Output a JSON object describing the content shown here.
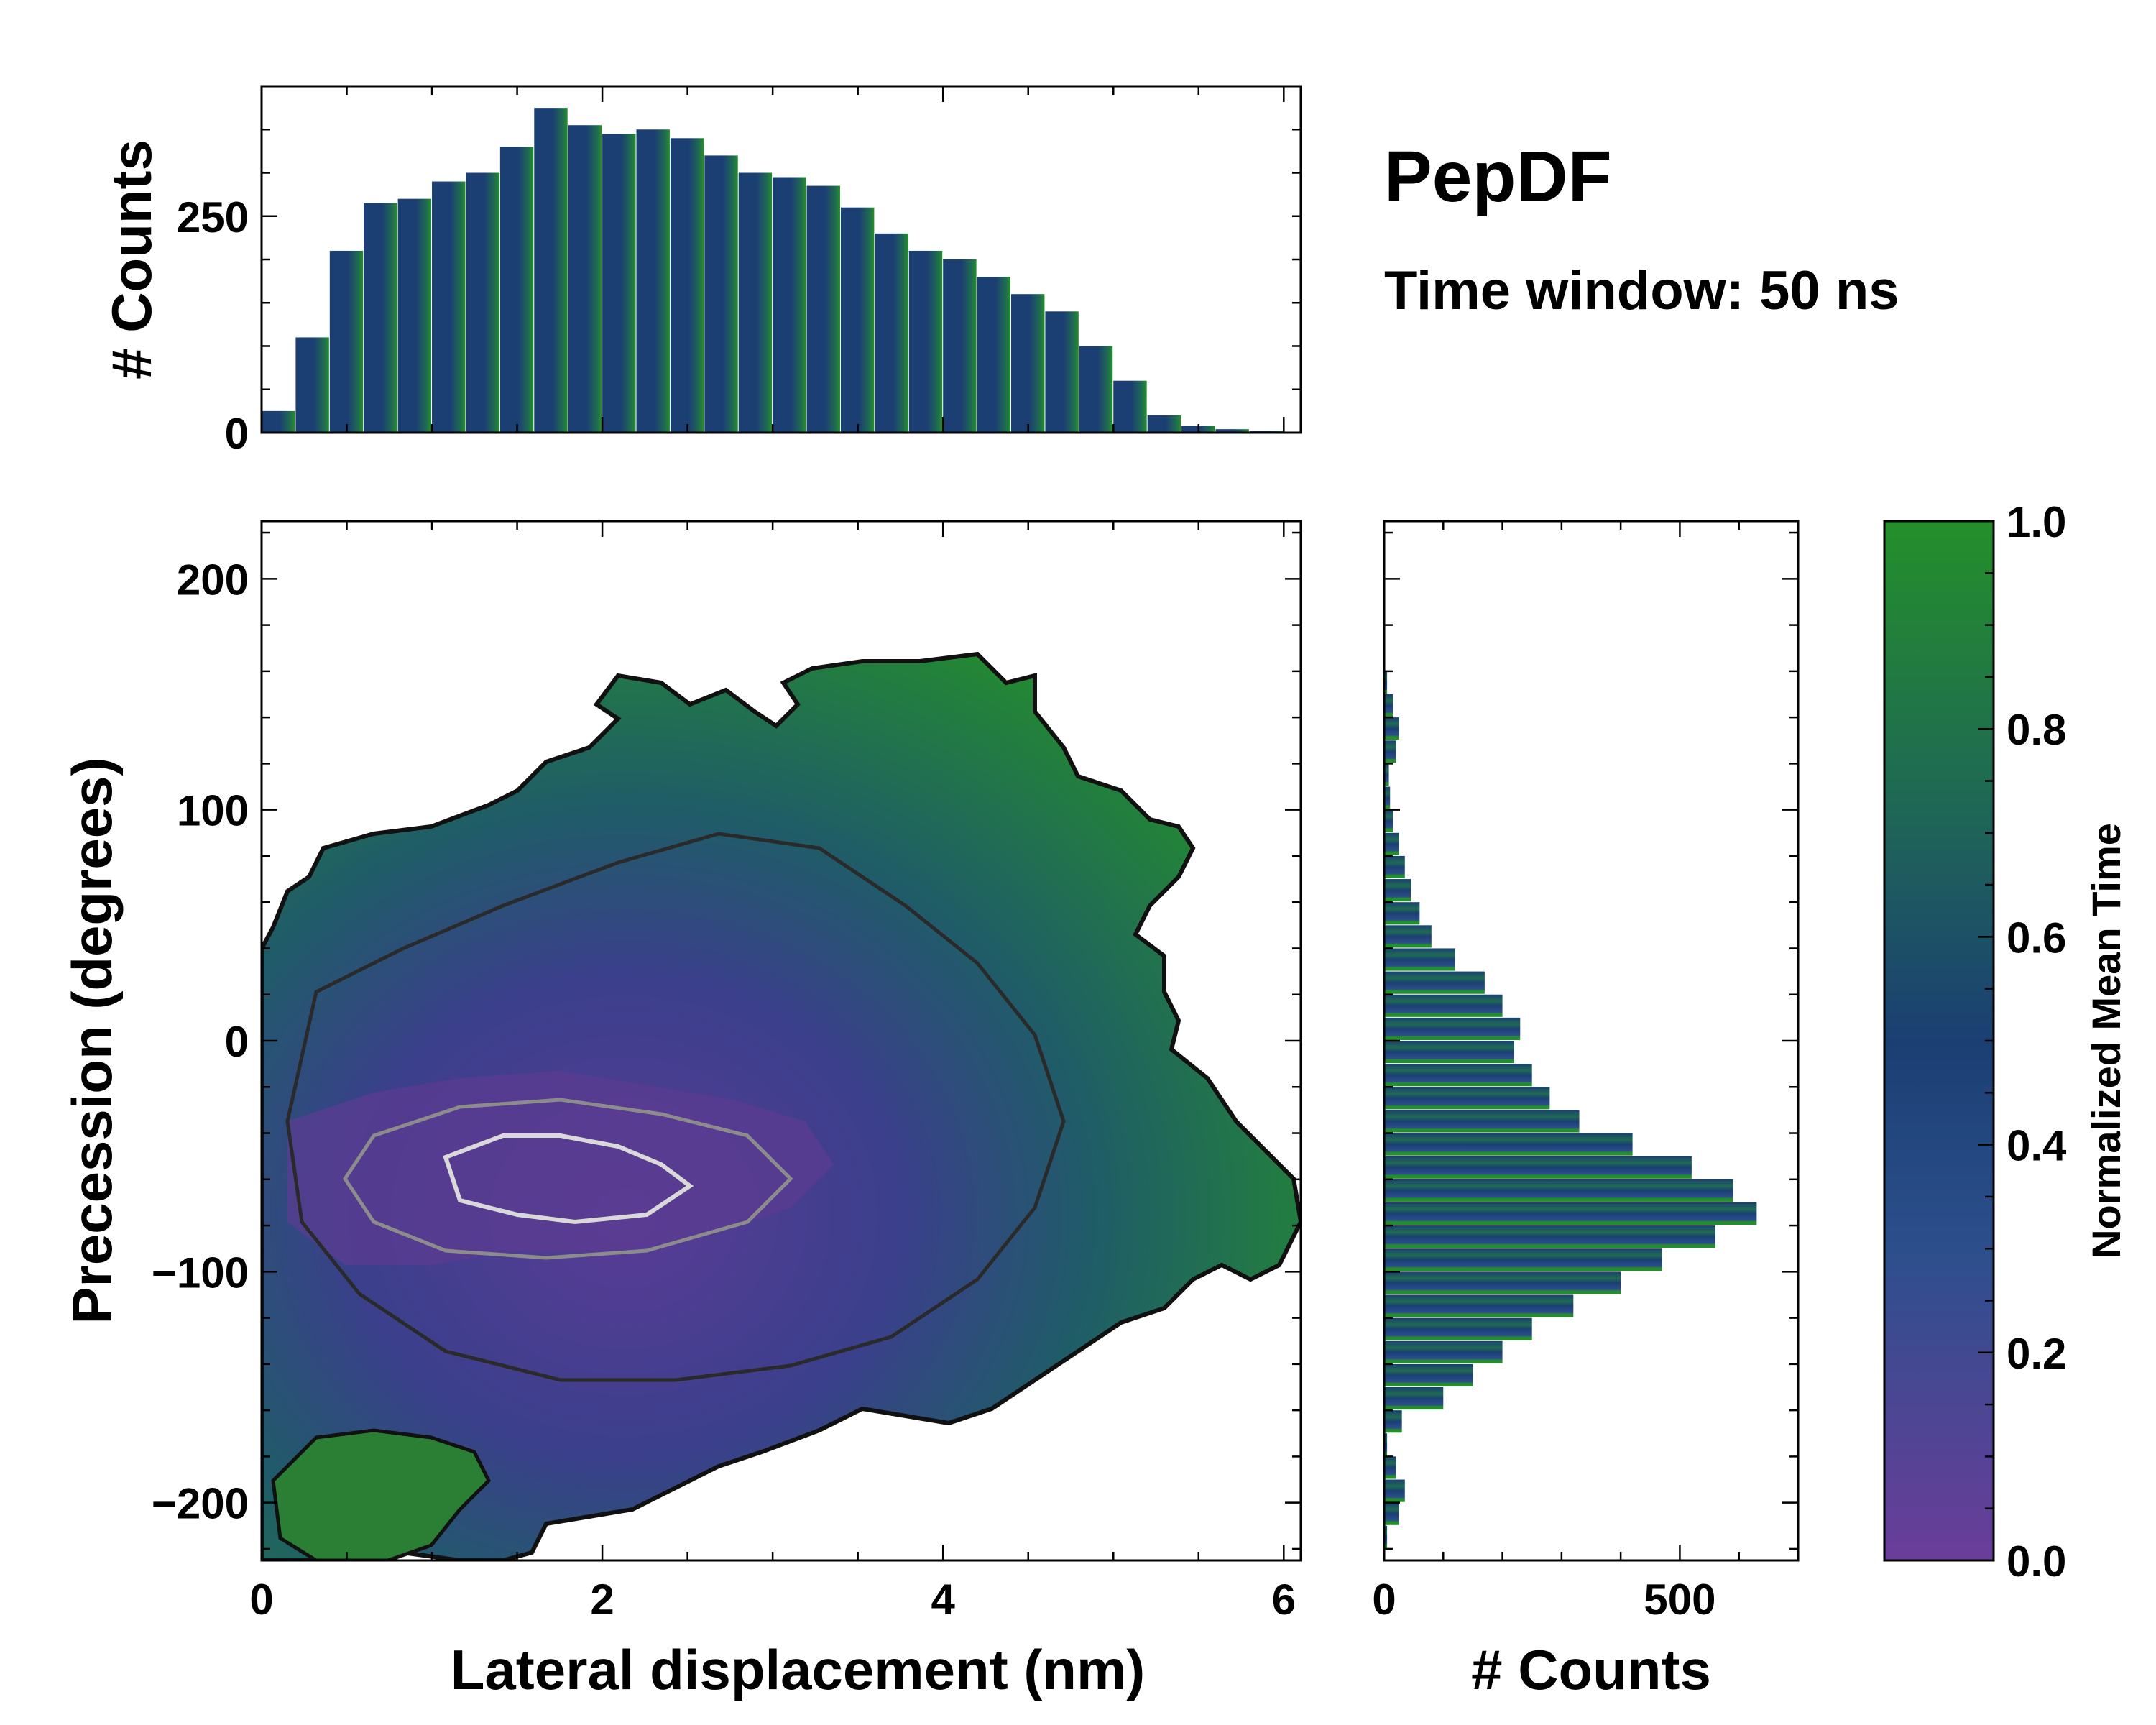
{
  "chart_data": {
    "type": "joint-histogram",
    "title": "PepDF",
    "subtitle": "Time window: 50 ns",
    "main": {
      "type": "heatmap",
      "xlabel": "Lateral displacement (nm)",
      "ylabel": "Precession (degrees)",
      "xlim": [
        0,
        6.1
      ],
      "ylim": [
        -225,
        225
      ],
      "xticks": [
        0,
        2,
        4,
        6
      ],
      "xtick_labels": [
        "0",
        "2",
        "4",
        "6"
      ],
      "yticks": [
        -200,
        -100,
        0,
        100,
        200
      ],
      "ytick_labels": [
        "−200",
        "−100",
        "0",
        "100",
        "200"
      ],
      "density_peak": {
        "x": 2.3,
        "y": -60
      },
      "contours": true
    },
    "top_histogram": {
      "type": "bar",
      "ylabel": "# Counts",
      "ylim": [
        0,
        400
      ],
      "yticks": [
        0,
        250
      ],
      "ytick_labels": [
        "0",
        "250"
      ],
      "bin_centers": [
        0.1,
        0.3,
        0.5,
        0.7,
        0.9,
        1.1,
        1.3,
        1.5,
        1.7,
        1.9,
        2.1,
        2.3,
        2.5,
        2.7,
        2.9,
        3.1,
        3.3,
        3.5,
        3.7,
        3.9,
        4.1,
        4.3,
        4.5,
        4.7,
        4.9,
        5.1,
        5.3,
        5.5,
        5.7,
        5.9
      ],
      "values": [
        25,
        110,
        210,
        265,
        270,
        290,
        300,
        330,
        375,
        355,
        345,
        350,
        340,
        320,
        300,
        295,
        285,
        260,
        230,
        210,
        200,
        180,
        160,
        140,
        100,
        60,
        20,
        8,
        4,
        2
      ]
    },
    "right_histogram": {
      "type": "barh",
      "xlabel": "# Counts",
      "xlim": [
        0,
        700
      ],
      "xticks": [
        0,
        500
      ],
      "xtick_labels": [
        "0",
        "500"
      ],
      "bin_centers": [
        -215,
        -205,
        -195,
        -185,
        -175,
        -165,
        -155,
        -145,
        -135,
        -125,
        -115,
        -105,
        -95,
        -85,
        -75,
        -65,
        -55,
        -45,
        -35,
        -25,
        -15,
        -5,
        5,
        15,
        25,
        35,
        45,
        55,
        65,
        75,
        85,
        95,
        105,
        115,
        125,
        135,
        145,
        155
      ],
      "values": [
        5,
        25,
        35,
        20,
        5,
        30,
        100,
        150,
        200,
        250,
        320,
        400,
        470,
        560,
        630,
        590,
        520,
        420,
        330,
        280,
        250,
        220,
        230,
        200,
        170,
        120,
        80,
        60,
        45,
        35,
        25,
        15,
        10,
        8,
        20,
        25,
        15,
        5
      ]
    },
    "colorbar": {
      "label": "Normalized Mean Time",
      "range": [
        0.0,
        1.0
      ],
      "ticks": [
        0.0,
        0.2,
        0.4,
        0.6,
        0.8,
        1.0
      ],
      "tick_labels": [
        "0.0",
        "0.2",
        "0.4",
        "0.6",
        "0.8",
        "1.0"
      ],
      "colors": [
        "#6a3d9a",
        "#2c4f8c",
        "#1b3f73",
        "#1f6b52",
        "#248f2a"
      ]
    }
  }
}
